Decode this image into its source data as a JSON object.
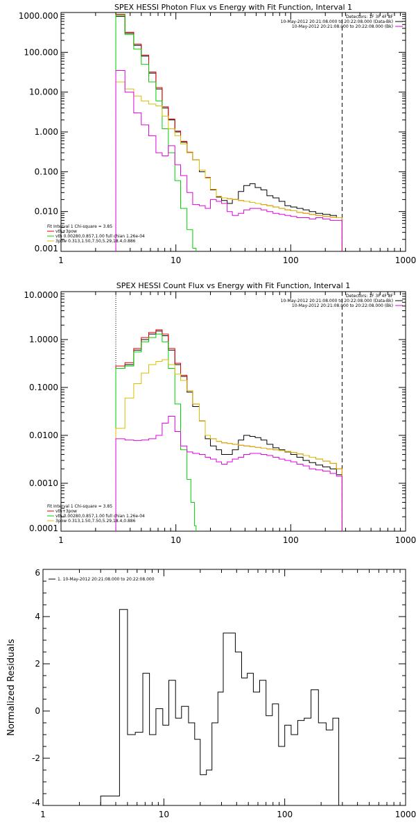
{
  "colors": {
    "black": "#000000",
    "red": "#e00000",
    "green": "#00d000",
    "yellow": "#d8c000",
    "magenta": "#e000e0"
  },
  "chart_data": [
    {
      "type": "line",
      "title": "SPEX HESSI Photon Flux vs Energy with Fit Function, Interval 1",
      "xscale": "log",
      "yscale": "log",
      "xlim": [
        1,
        1000
      ],
      "ylim": [
        0.001,
        1000
      ],
      "x_ticks": [
        1,
        10,
        100,
        1000
      ],
      "x_tick_labels": [
        "1",
        "10",
        "100",
        "1000"
      ],
      "y_ticks": [
        0.001,
        0.01,
        0.1,
        1,
        10,
        100,
        1000
      ],
      "y_tick_labels": [
        "0.001",
        "0.010",
        "0.100",
        "1.000",
        "10.000",
        "100.000",
        "1000.000"
      ],
      "vlines": [
        {
          "x": 3.0,
          "style": "dotted"
        },
        {
          "x": 280,
          "style": "dashed"
        }
      ],
      "legend_top_right": [
        "Detectors: 1F 3F 4F 8F",
        "10-May-2012 20:21:08.000 to 20:22:08.000 (Data-Bk)",
        "10-May-2012 20:21:08.000 to 20:22:08.000 (Bk)"
      ],
      "legend_bottom_left": {
        "header": "Fit Interval 1   Chi-square = 3.85",
        "items": [
          "vth+3pow",
          "vth 0.00280,0.857,1.00  full chian 1.26e-04",
          "3pow 0.313,1.50,7.50,5.29,18.4,0.886"
        ]
      },
      "series": [
        {
          "name": "10-May-2012 20:21:08.000 to 20:22:08.000 (Data-Bk)",
          "color": "black",
          "step": true,
          "x": [
            3,
            3.6,
            4.3,
            5.0,
            5.8,
            6.7,
            7.6,
            8.6,
            9.8,
            11,
            12.5,
            14,
            16,
            18,
            20,
            22.5,
            25,
            28,
            31,
            35,
            39,
            44,
            49,
            55,
            62,
            70,
            79,
            89,
            100,
            113,
            128,
            145,
            165,
            190,
            220,
            250,
            280
          ],
          "y": [
            800,
            300,
            150,
            80,
            30,
            12,
            4,
            2.0,
            1.0,
            0.55,
            0.3,
            0.2,
            0.1,
            0.07,
            0.035,
            0.023,
            0.019,
            0.016,
            0.02,
            0.032,
            0.045,
            0.05,
            0.04,
            0.035,
            0.025,
            0.022,
            0.018,
            0.014,
            0.013,
            0.012,
            0.011,
            0.01,
            0.009,
            0.0085,
            0.008,
            0.007,
            0.007
          ]
        },
        {
          "name": "vth+3pow",
          "color": "red",
          "step": true,
          "x": [
            3,
            3.6,
            4.3,
            5.0,
            5.8,
            6.7,
            7.6,
            8.6,
            9.8,
            11,
            12.5,
            14,
            16,
            18,
            20,
            22.5,
            25,
            28,
            31,
            35,
            39,
            44,
            49,
            55,
            62,
            70,
            79,
            89,
            100,
            113,
            128,
            145,
            165,
            190,
            220,
            250,
            280
          ],
          "y": [
            900,
            320,
            160,
            85,
            32,
            13,
            4.3,
            2.1,
            1.05,
            0.58,
            0.31,
            0.2,
            0.11,
            0.072,
            0.036,
            0.024,
            0.022,
            0.021,
            0.02,
            0.019,
            0.018,
            0.017,
            0.016,
            0.015,
            0.014,
            0.013,
            0.012,
            0.011,
            0.0105,
            0.0095,
            0.009,
            0.0085,
            0.008,
            0.0075,
            0.0072,
            0.007,
            0.007
          ]
        },
        {
          "name": "vth 0.00280,0.857,1.00  full chian 1.26e-04",
          "color": "green",
          "step": true,
          "x": [
            3,
            3.6,
            4.3,
            5.0,
            5.8,
            6.7,
            7.6,
            8.6,
            9.8,
            11,
            12.5,
            14,
            15
          ],
          "y": [
            850,
            280,
            120,
            50,
            18,
            6,
            1.2,
            0.3,
            0.06,
            0.012,
            0.0035,
            0.0012,
            0.001
          ]
        },
        {
          "name": "3pow 0.313,1.50,7.50,5.29,18.4,0.886",
          "color": "yellow",
          "step": true,
          "x": [
            3,
            3.6,
            4.3,
            5.0,
            5.8,
            6.7,
            7.6,
            8.6,
            9.8,
            11,
            12.5,
            14,
            16,
            18,
            20,
            22.5,
            25,
            28,
            31,
            35,
            39,
            44,
            49,
            55,
            62,
            70,
            79,
            89,
            100,
            113,
            128,
            145,
            165,
            190,
            220,
            250,
            280
          ],
          "y": [
            18,
            12,
            8,
            6,
            5,
            4.5,
            2.5,
            1.2,
            0.8,
            0.5,
            0.3,
            0.2,
            0.11,
            0.07,
            0.036,
            0.024,
            0.022,
            0.021,
            0.02,
            0.019,
            0.018,
            0.017,
            0.016,
            0.015,
            0.014,
            0.013,
            0.012,
            0.011,
            0.0105,
            0.0095,
            0.009,
            0.0085,
            0.008,
            0.0075,
            0.0072,
            0.007,
            0.007
          ]
        },
        {
          "name": "10-May-2012 20:21:08.000 to 20:22:08.000 (Bk)",
          "color": "magenta",
          "step": true,
          "x": [
            3,
            3.6,
            4.3,
            5.0,
            5.8,
            6.7,
            7.6,
            8.6,
            9.8,
            11,
            12.5,
            14,
            16,
            18,
            20,
            22.5,
            25,
            28,
            31,
            35,
            39,
            44,
            49,
            55,
            62,
            70,
            79,
            89,
            100,
            113,
            128,
            145,
            165,
            190,
            220,
            250,
            280
          ],
          "y": [
            35,
            10,
            3,
            1.5,
            0.8,
            0.3,
            0.25,
            0.45,
            0.15,
            0.08,
            0.03,
            0.015,
            0.014,
            0.012,
            0.02,
            0.018,
            0.016,
            0.01,
            0.008,
            0.009,
            0.011,
            0.012,
            0.012,
            0.011,
            0.01,
            0.009,
            0.0085,
            0.008,
            0.0075,
            0.007,
            0.007,
            0.0065,
            0.007,
            0.0065,
            0.006,
            0.006,
            0.006
          ]
        }
      ]
    },
    {
      "type": "line",
      "title": "SPEX HESSI Count Flux vs Energy with Fit Function, Interval 1",
      "xscale": "log",
      "yscale": "log",
      "xlim": [
        1,
        1000
      ],
      "ylim": [
        0.0001,
        10
      ],
      "x_ticks": [
        1,
        10,
        100,
        1000
      ],
      "x_tick_labels": [
        "1",
        "10",
        "100",
        "1000"
      ],
      "y_ticks": [
        0.0001,
        0.001,
        0.01,
        0.1,
        1,
        10
      ],
      "y_tick_labels": [
        "0.0001",
        "0.0010",
        "0.0100",
        "0.1000",
        "1.0000",
        "10.0000"
      ],
      "vlines": [
        {
          "x": 3.0,
          "style": "dotted"
        },
        {
          "x": 280,
          "style": "dashed"
        }
      ],
      "legend_top_right": [
        "Detectors: 1F 3F 4F 8F",
        "10-May-2012 20:21:08.000 to 20:22:08.000 (Data-Bk)",
        "10-May-2012 20:21:08.000 to 20:22:08.000 (Bk)"
      ],
      "legend_bottom_left": {
        "header": "Fit Interval 1   Chi-square = 3.85",
        "items": [
          "vth+3pow",
          "vth 0.00280,0.857,1.00  full chian 1.26e-04",
          "3pow 0.313,1.50,7.50,5.29,18.4,0.886"
        ]
      },
      "series": [
        {
          "name": "10-May-2012 20:21:08.000 to 20:22:08.000 (Data-Bk)",
          "color": "black",
          "step": true,
          "x": [
            3,
            3.6,
            4.3,
            5.0,
            5.8,
            6.7,
            7.6,
            8.6,
            9.8,
            11,
            12.5,
            14,
            16,
            18,
            20,
            22.5,
            25,
            28,
            31,
            35,
            39,
            44,
            49,
            55,
            62,
            70,
            79,
            89,
            100,
            113,
            128,
            145,
            165,
            190,
            220,
            250,
            280
          ],
          "y": [
            0.25,
            0.3,
            0.6,
            1.0,
            1.3,
            1.5,
            1.2,
            0.6,
            0.3,
            0.17,
            0.08,
            0.04,
            0.02,
            0.0085,
            0.006,
            0.005,
            0.004,
            0.004,
            0.005,
            0.008,
            0.01,
            0.0095,
            0.009,
            0.008,
            0.0065,
            0.0055,
            0.005,
            0.0045,
            0.004,
            0.0035,
            0.003,
            0.0027,
            0.0024,
            0.0022,
            0.002,
            0.0015,
            0.0012
          ]
        },
        {
          "name": "vth+3pow",
          "color": "red",
          "step": true,
          "x": [
            3,
            3.6,
            4.3,
            5.0,
            5.8,
            6.7,
            7.6,
            8.6,
            9.8,
            11,
            12.5,
            14,
            16,
            18,
            20,
            22.5,
            25,
            28,
            31,
            35,
            39,
            44,
            49,
            55,
            62,
            70,
            79,
            89,
            100,
            113,
            128,
            145,
            165,
            190,
            220,
            250,
            280
          ],
          "y": [
            0.28,
            0.33,
            0.65,
            1.1,
            1.4,
            1.6,
            1.3,
            0.65,
            0.32,
            0.18,
            0.085,
            0.045,
            0.02,
            0.01,
            0.0085,
            0.0075,
            0.007,
            0.0068,
            0.0065,
            0.0062,
            0.006,
            0.0058,
            0.0056,
            0.0054,
            0.0052,
            0.005,
            0.0048,
            0.0046,
            0.0044,
            0.0041,
            0.0038,
            0.0035,
            0.0032,
            0.0029,
            0.0026,
            0.002,
            0.0015
          ]
        },
        {
          "name": "vth 0.00280,0.857,1.00  full chian 1.26e-04",
          "color": "green",
          "step": true,
          "x": [
            3,
            3.6,
            4.3,
            5.0,
            5.8,
            6.7,
            7.6,
            8.6,
            9.8,
            11,
            12.5,
            13.5,
            14.5,
            15
          ],
          "y": [
            0.25,
            0.28,
            0.55,
            0.9,
            1.1,
            1.3,
            0.9,
            0.25,
            0.045,
            0.005,
            0.0012,
            0.0004,
            0.00013,
            0.0001
          ]
        },
        {
          "name": "3pow 0.313,1.50,7.50,5.29,18.4,0.886",
          "color": "yellow",
          "step": true,
          "x": [
            3,
            3.6,
            4.3,
            5.0,
            5.8,
            6.7,
            7.6,
            8.6,
            9.8,
            11,
            12.5,
            14,
            16,
            18,
            20,
            22.5,
            25,
            28,
            31,
            35,
            39,
            44,
            49,
            55,
            62,
            70,
            79,
            89,
            100,
            113,
            128,
            145,
            165,
            190,
            220,
            250,
            280
          ],
          "y": [
            0.014,
            0.06,
            0.12,
            0.2,
            0.3,
            0.35,
            0.38,
            0.3,
            0.19,
            0.14,
            0.085,
            0.045,
            0.02,
            0.01,
            0.0085,
            0.0075,
            0.007,
            0.0068,
            0.0065,
            0.0062,
            0.006,
            0.0058,
            0.0056,
            0.0054,
            0.0052,
            0.005,
            0.0048,
            0.0046,
            0.0044,
            0.0041,
            0.0038,
            0.0035,
            0.0032,
            0.0029,
            0.0026,
            0.002,
            0.0015
          ]
        },
        {
          "name": "10-May-2012 20:21:08.000 to 20:22:08.000 (Bk)",
          "color": "magenta",
          "step": true,
          "x": [
            3,
            3.6,
            4.3,
            5.0,
            5.8,
            6.7,
            7.6,
            8.6,
            9.8,
            11,
            12.5,
            14,
            16,
            18,
            20,
            22.5,
            25,
            28,
            31,
            35,
            39,
            44,
            49,
            55,
            62,
            70,
            79,
            89,
            100,
            113,
            128,
            145,
            165,
            190,
            220,
            250,
            280
          ],
          "y": [
            0.0085,
            0.008,
            0.0078,
            0.008,
            0.0085,
            0.01,
            0.018,
            0.025,
            0.012,
            0.006,
            0.0045,
            0.0042,
            0.004,
            0.0035,
            0.0032,
            0.0028,
            0.0025,
            0.0028,
            0.0032,
            0.0035,
            0.004,
            0.0042,
            0.0042,
            0.004,
            0.0038,
            0.0035,
            0.0032,
            0.003,
            0.0028,
            0.0025,
            0.0023,
            0.002,
            0.0019,
            0.0018,
            0.0016,
            0.0014,
            0.0012
          ]
        }
      ]
    },
    {
      "type": "line",
      "title": "",
      "ylabel": "Normalized Residuals",
      "xscale": "log",
      "yscale": "linear",
      "xlim": [
        1,
        1000
      ],
      "ylim": [
        -4,
        6
      ],
      "x_ticks": [
        1,
        10,
        100,
        1000
      ],
      "x_tick_labels": [
        "1",
        "10",
        "100",
        "1000"
      ],
      "y_ticks": [
        -4,
        -2,
        0,
        2,
        4,
        6
      ],
      "y_tick_labels": [
        "-4",
        "-2",
        "0",
        "2",
        "4",
        "6"
      ],
      "legend_top_left": "1. 10-May-2012 20:21:08.000 to 20:22:08.000",
      "series": [
        {
          "name": "1. 10-May-2012 20:21:08.000 to 20:22:08.000",
          "color": "black",
          "step": true,
          "x": [
            3,
            4.3,
            5.0,
            5.8,
            6.7,
            7.6,
            8.6,
            9.8,
            11,
            12.5,
            14,
            16,
            18,
            20,
            22.5,
            25,
            28,
            31,
            35,
            39,
            44,
            49,
            55,
            62,
            70,
            79,
            89,
            100,
            113,
            128,
            145,
            165,
            190,
            220,
            250,
            280
          ],
          "y": [
            -3.6,
            4.3,
            -1.0,
            -0.9,
            1.6,
            -1.0,
            0.1,
            -0.6,
            1.3,
            -0.3,
            0.2,
            -0.5,
            -1.2,
            -2.7,
            -2.5,
            -0.5,
            0.8,
            3.3,
            3.3,
            2.5,
            1.4,
            1.6,
            0.8,
            1.3,
            -0.2,
            0.3,
            -1.5,
            -0.6,
            -1.0,
            -0.4,
            -0.3,
            0.9,
            -0.5,
            -0.8,
            -0.3,
            -4.0
          ]
        }
      ]
    }
  ]
}
